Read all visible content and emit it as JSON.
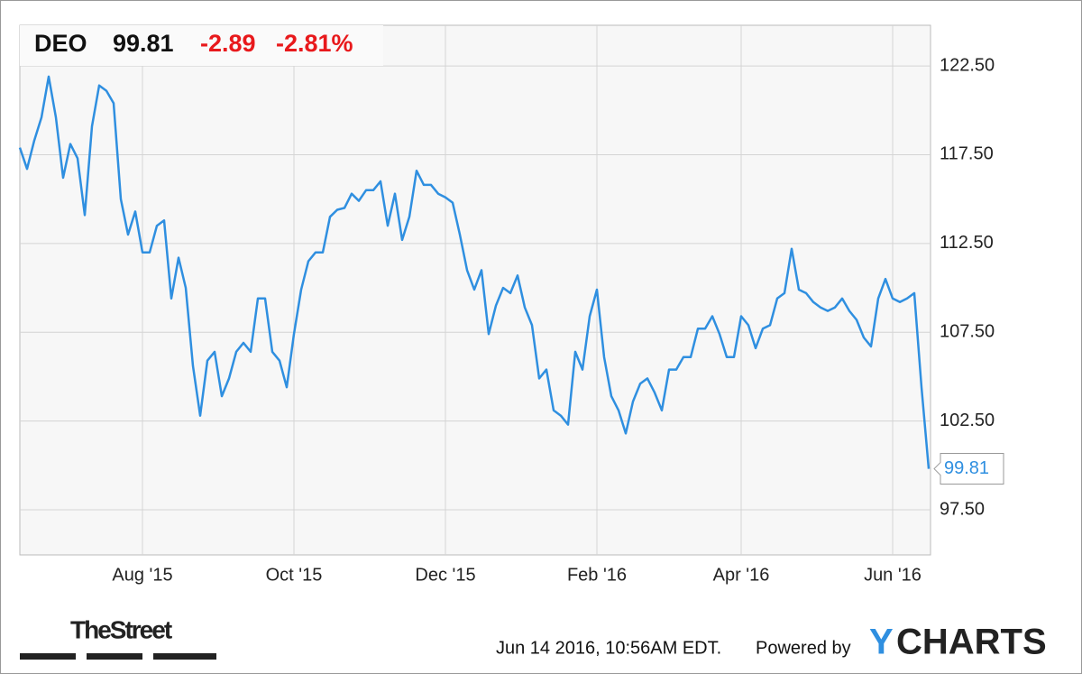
{
  "header": {
    "ticker": "DEO",
    "price": "99.81",
    "change": "-2.89",
    "change_pct": "-2.81%"
  },
  "footer": {
    "timestamp": "Jun 14 2016, 10:56AM EDT.",
    "powered_by": "Powered by",
    "logo_y": "Y",
    "logo_rest": "CHARTS",
    "source_logo": "TheStreet"
  },
  "chart_data": {
    "type": "line",
    "color": "#2f8fe0",
    "grid": true,
    "categories": [
      null,
      null,
      null,
      null,
      null,
      null,
      null,
      null,
      null,
      null,
      null,
      null,
      null,
      null,
      null,
      null,
      null,
      "Aug '15",
      null,
      null,
      null,
      null,
      null,
      null,
      null,
      null,
      null,
      null,
      null,
      null,
      null,
      null,
      null,
      null,
      null,
      null,
      null,
      null,
      "Oct '15",
      null,
      null,
      null,
      null,
      null,
      null,
      null,
      null,
      null,
      null,
      null,
      null,
      null,
      null,
      null,
      null,
      null,
      null,
      null,
      null,
      "Dec '15",
      null,
      null,
      null,
      null,
      null,
      null,
      null,
      null,
      null,
      null,
      null,
      null,
      null,
      null,
      null,
      null,
      null,
      null,
      null,
      null,
      "Feb '16",
      null,
      null,
      null,
      null,
      null,
      null,
      null,
      null,
      null,
      null,
      null,
      null,
      null,
      null,
      null,
      null,
      null,
      null,
      null,
      "Apr '16",
      null,
      null,
      null,
      null,
      null,
      null,
      null,
      null,
      null,
      null,
      null,
      null,
      null,
      null,
      null,
      null,
      null,
      null,
      null,
      null,
      "Jun '16",
      null,
      null,
      null,
      null,
      null
    ],
    "values": [
      117.9,
      116.7,
      118.3,
      119.6,
      121.9,
      119.6,
      116.2,
      118.1,
      117.3,
      114.1,
      119.1,
      121.4,
      121.1,
      120.4,
      115.0,
      113.0,
      114.3,
      112.0,
      112.0,
      113.5,
      113.8,
      109.4,
      111.7,
      110.0,
      105.6,
      102.8,
      105.9,
      106.4,
      103.9,
      104.9,
      106.4,
      106.9,
      106.4,
      109.4,
      109.4,
      106.4,
      105.9,
      104.4,
      107.4,
      109.9,
      111.5,
      112.0,
      112.0,
      114.0,
      114.4,
      114.5,
      115.3,
      114.9,
      115.5,
      115.5,
      116.0,
      113.5,
      115.3,
      112.7,
      114.0,
      116.6,
      115.8,
      115.8,
      115.3,
      115.1,
      114.8,
      113.0,
      111.0,
      109.9,
      111.0,
      107.4,
      109.0,
      110.0,
      109.7,
      110.7,
      108.9,
      107.9,
      104.9,
      105.4,
      103.1,
      102.8,
      102.3,
      106.4,
      105.4,
      108.4,
      109.9,
      106.1,
      103.9,
      103.1,
      101.8,
      103.6,
      104.6,
      104.9,
      104.1,
      103.1,
      105.4,
      105.4,
      106.1,
      106.1,
      107.7,
      107.7,
      108.4,
      107.4,
      106.1,
      106.1,
      108.4,
      107.9,
      106.6,
      107.7,
      107.9,
      109.4,
      109.7,
      112.2,
      109.9,
      109.7,
      109.2,
      108.9,
      108.7,
      108.9,
      109.4,
      108.7,
      108.2,
      107.2,
      106.7,
      109.4,
      110.5,
      109.4,
      109.2,
      109.4,
      109.7,
      104.4,
      99.81
    ],
    "ylim": [
      94.96,
      124.79
    ],
    "yticks": [
      {
        "value": 97.5,
        "label": "97.50"
      },
      {
        "value": 102.5,
        "label": "102.50"
      },
      {
        "value": 107.5,
        "label": "107.50"
      },
      {
        "value": 112.5,
        "label": "112.50"
      },
      {
        "value": 117.5,
        "label": "117.50"
      },
      {
        "value": 122.5,
        "label": "122.50"
      }
    ]
  }
}
